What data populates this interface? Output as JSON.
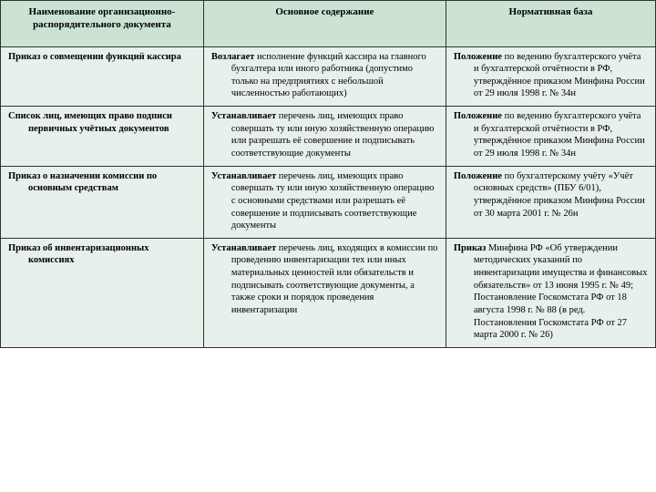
{
  "headers": {
    "c1": "Наименование организационно-распорядительного документа",
    "c2": "Основное содержание",
    "c3": "Нормативная база"
  },
  "rows": [
    {
      "c1_bold": "Приказ о совмещении функций кассира",
      "c1_rest": "",
      "c2_bold": "Возлагает",
      "c2_rest": " исполнение функций кассира на главного бухгалтера или иного работника (допустимо только на предприятиях с небольшой численностью работающих)",
      "c3_bold": "Положение",
      "c3_rest": " по ведению бухгалтерского учёта и бухгалтерской отчётности в РФ, утверждённое приказом Минфина России от 29 июля 1998 г. № 34н"
    },
    {
      "c1_bold": "Список лиц, имеющих право подписи первичных учётных документов",
      "c1_rest": "",
      "c2_bold": "Устанавливает",
      "c2_rest": " перечень лиц, имеющих право совершать ту или иную хозяйственную операцию или разрешать её совершение и подписывать соответствующие документы",
      "c3_bold": "Положение",
      "c3_rest": " по ведению бухгалтерского учёта и бухгалтерской отчётности в РФ, утверждённое приказом Минфина России от 29 июля 1998 г. № 34н"
    },
    {
      "c1_bold": "Приказ о назначении комиссии по основным средствам",
      "c1_rest": "",
      "c2_bold": "Устанавливает",
      "c2_rest": " перечень лиц, имеющих право совершать ту или иную хозяйственную операцию с основными средствами или разрешать её совершение и подписывать соответствующие документы",
      "c3_bold": "Положение",
      "c3_rest": " по бухгалтерскому учёту «Учёт основных средств» (ПБУ 6/01), утверждённое приказом Минфина России от 30 марта 2001 г. № 26н"
    },
    {
      "c1_bold": "Приказ об инвентаризационных комиссиях",
      "c1_rest": "",
      "c2_bold": "Устанавливает",
      "c2_rest": " перечень лиц, входящих в комиссии по проведению инвентаризации тех или иных материальных ценностей или обязательств и подписывать соответствующие документы, а также сроки и порядок проведения инвентаризации",
      "c3_bold": "Приказ",
      "c3_rest": " Минфина РФ «Об утверждении методических указаний по инвентаризации имущества и финансовых обязательств» от 13 июня 1995 г. № 49; Постановление Госкомстата РФ от 18 августа 1998 г. № 88 (в ред. Постановления Госкомстата РФ от 27 марта 2000 г. № 26)"
    }
  ]
}
